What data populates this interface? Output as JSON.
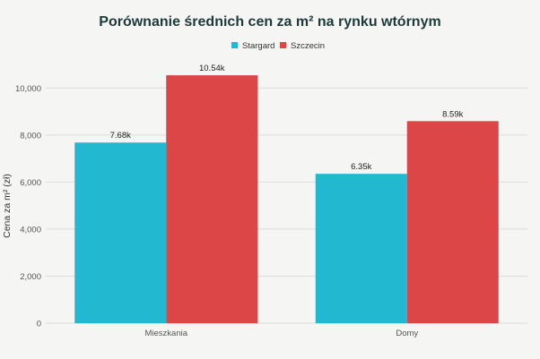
{
  "chart_data": {
    "type": "bar",
    "title": "Porównanie średnich cen za m² na rynku wtórnym",
    "ylabel": "Cena za m² (zł)",
    "xlabel": "",
    "categories": [
      "Mieszkania",
      "Domy"
    ],
    "series": [
      {
        "name": "Stargard",
        "values": [
          7680,
          6350
        ],
        "labels": [
          "7.68k",
          "6.35k"
        ],
        "color": "#22b8cf"
      },
      {
        "name": "Szczecin",
        "values": [
          10540,
          8590
        ],
        "labels": [
          "10.54k",
          "8.59k"
        ],
        "color": "#dc4646"
      }
    ],
    "ylim": [
      0,
      11000
    ],
    "yticks": [
      0,
      2000,
      4000,
      6000,
      8000,
      10000
    ],
    "ytick_labels": [
      "0",
      "2,000",
      "4,000",
      "6,000",
      "8,000",
      "10,000"
    ],
    "grid": true,
    "legend_position": "top-center"
  }
}
